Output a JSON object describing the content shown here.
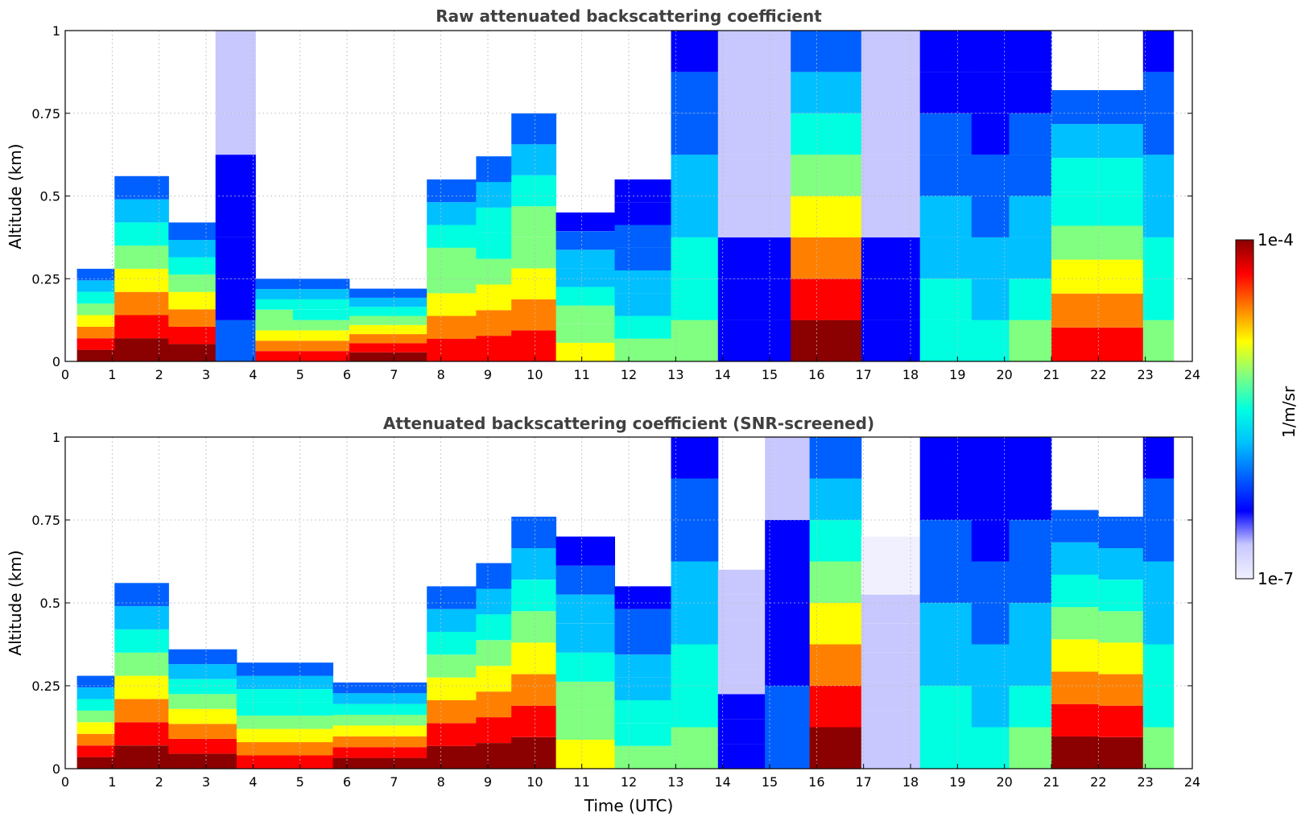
{
  "chart_data": [
    {
      "type": "heatmap",
      "title": "Raw attenuated backscattering coefficient",
      "xlabel": "",
      "ylabel": "Altitude (km)",
      "xlim": [
        0,
        24
      ],
      "ylim": [
        0,
        1
      ],
      "xticks": [
        "0",
        "1",
        "2",
        "3",
        "4",
        "5",
        "6",
        "7",
        "8",
        "9",
        "10",
        "11",
        "12",
        "13",
        "14",
        "15",
        "16",
        "17",
        "18",
        "19",
        "20",
        "21",
        "22",
        "23",
        "24"
      ],
      "yticks": [
        "0",
        "0.25",
        "0.5",
        "0.75",
        "1"
      ],
      "grid": true,
      "columns": [
        {
          "t": 0.5,
          "top": 0.28,
          "c": 0.95
        },
        {
          "t": 1.6,
          "top": 0.56,
          "c": 0.95
        },
        {
          "t": 2.8,
          "top": 0.42,
          "c": 0.95
        },
        {
          "t": 3.6,
          "top": 1.0,
          "c": 0.25
        },
        {
          "t": 4.5,
          "top": 0.25,
          "c": 0.9
        },
        {
          "t": 5.2,
          "top": 0.25,
          "c": 0.85
        },
        {
          "t": 6.9,
          "top": 0.22,
          "c": 0.95
        },
        {
          "t": 8.5,
          "top": 0.55,
          "c": 0.9
        },
        {
          "t": 9.0,
          "top": 0.62,
          "c": 0.85
        },
        {
          "t": 10.0,
          "top": 0.75,
          "c": 0.9
        },
        {
          "t": 10.9,
          "top": 0.45,
          "c": 0.7
        },
        {
          "t": 12.5,
          "top": 0.55,
          "c": 0.55
        },
        {
          "t": 13.3,
          "top": 1.0,
          "c": 0.6
        },
        {
          "t": 14.5,
          "top": 1.0,
          "c": 0.2
        },
        {
          "t": 16.4,
          "top": 1.0,
          "c": 0.95
        },
        {
          "t": 17.5,
          "top": 1.0,
          "c": 0.2
        },
        {
          "t": 18.9,
          "top": 1.0,
          "c": 0.5
        },
        {
          "t": 19.7,
          "top": 1.0,
          "c": 0.45
        },
        {
          "t": 20.5,
          "top": 1.0,
          "c": 0.55
        },
        {
          "t": 21.5,
          "top": 0.82,
          "c": 0.85
        },
        {
          "t": 22.5,
          "top": 0.82,
          "c": 0.85
        },
        {
          "t": 23.4,
          "top": 1.0,
          "c": 0.6
        }
      ]
    },
    {
      "type": "heatmap",
      "title": "Attenuated backscattering coefficient (SNR-screened)",
      "xlabel": "Time (UTC)",
      "ylabel": "Altitude (km)",
      "xlim": [
        0,
        24
      ],
      "ylim": [
        0,
        1
      ],
      "xticks": [
        "0",
        "1",
        "2",
        "3",
        "4",
        "5",
        "6",
        "7",
        "8",
        "9",
        "10",
        "11",
        "12",
        "13",
        "14",
        "15",
        "16",
        "17",
        "18",
        "19",
        "20",
        "21",
        "22",
        "23",
        "24"
      ],
      "yticks": [
        "0",
        "0.25",
        "0.5",
        "0.75",
        "1"
      ],
      "grid": true,
      "columns": [
        {
          "t": 0.5,
          "top": 0.28,
          "c": 0.95
        },
        {
          "t": 1.6,
          "top": 0.56,
          "c": 0.95
        },
        {
          "t": 2.8,
          "top": 0.36,
          "c": 0.95
        },
        {
          "t": 4.5,
          "top": 0.32,
          "c": 0.85
        },
        {
          "t": 6.9,
          "top": 0.26,
          "c": 0.95
        },
        {
          "t": 8.5,
          "top": 0.55,
          "c": 1.0
        },
        {
          "t": 9.0,
          "top": 0.62,
          "c": 0.95
        },
        {
          "t": 10.0,
          "top": 0.76,
          "c": 1.0
        },
        {
          "t": 10.9,
          "top": 0.7,
          "c": 0.7
        },
        {
          "t": 12.5,
          "top": 0.55,
          "c": 0.6
        },
        {
          "t": 13.3,
          "top": 1.0,
          "c": 0.6
        },
        {
          "t": 14.5,
          "top": 0.6,
          "c": 0.2
        },
        {
          "t": 15.3,
          "top": 1.0,
          "c": 0.3
        },
        {
          "t": 16.4,
          "top": 1.0,
          "c": 0.95
        },
        {
          "t": 17.5,
          "top": 0.7,
          "c": 0.1
        },
        {
          "t": 18.9,
          "top": 1.0,
          "c": 0.5
        },
        {
          "t": 19.7,
          "top": 1.0,
          "c": 0.45
        },
        {
          "t": 20.5,
          "top": 1.0,
          "c": 0.55
        },
        {
          "t": 21.5,
          "top": 0.78,
          "c": 1.0
        },
        {
          "t": 22.5,
          "top": 0.76,
          "c": 1.0
        },
        {
          "t": 23.4,
          "top": 1.0,
          "c": 0.6
        }
      ]
    }
  ],
  "colorbar": {
    "label": "1/m/sr",
    "max_label": "1e-4",
    "min_label": "1e-7",
    "colors": [
      "#f0f0ff",
      "#c8c8ff",
      "#0000ff",
      "#0060ff",
      "#00c0ff",
      "#00ffe0",
      "#80ff80",
      "#ffff00",
      "#ff8000",
      "#ff0000",
      "#8b0000"
    ]
  }
}
